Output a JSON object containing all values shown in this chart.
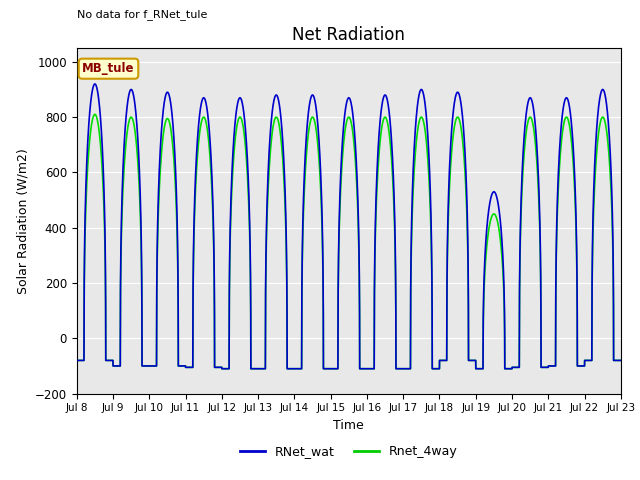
{
  "title": "Net Radiation",
  "xlabel": "Time",
  "ylabel": "Solar Radiation (W/m2)",
  "ylim": [
    -200,
    1050
  ],
  "yticks": [
    -200,
    0,
    200,
    400,
    600,
    800,
    1000
  ],
  "xtick_labels": [
    "Jul 8",
    "Jul 9",
    "Jul 10",
    "Jul 11",
    "Jul 12",
    "Jul 13",
    "Jul 14",
    "Jul 15",
    "Jul 16",
    "Jul 17",
    "Jul 18",
    "Jul 19",
    "Jul 20",
    "Jul 21",
    "Jul 22",
    "Jul 23"
  ],
  "annotation_text": "No data for f_RNet_tule",
  "legend_box_text": "MB_tule",
  "legend_entries": [
    "RNet_wat",
    "Rnet_4way"
  ],
  "legend_colors": [
    "#0000cc",
    "#00cc00"
  ],
  "line_color_blue": "#0000cc",
  "line_color_green": "#00dd00",
  "background_color": "#e8e8e8",
  "title_fontsize": 12,
  "axis_label_fontsize": 9,
  "n_days": 15,
  "peak_blue": [
    920,
    900,
    890,
    870,
    870,
    880,
    880,
    870,
    880,
    900,
    890,
    530,
    870,
    870,
    900
  ],
  "peak_green": [
    810,
    800,
    795,
    800,
    800,
    800,
    800,
    800,
    800,
    800,
    800,
    450,
    800,
    800,
    800
  ],
  "night_blue": [
    -80,
    -100,
    -100,
    -105,
    -110,
    -110,
    -110,
    -110,
    -110,
    -110,
    -80,
    -110,
    -105,
    -100,
    -80
  ],
  "night_green": [
    -80,
    -100,
    -100,
    -105,
    -110,
    -110,
    -110,
    -110,
    -110,
    -110,
    -80,
    -110,
    -105,
    -100,
    -80
  ]
}
